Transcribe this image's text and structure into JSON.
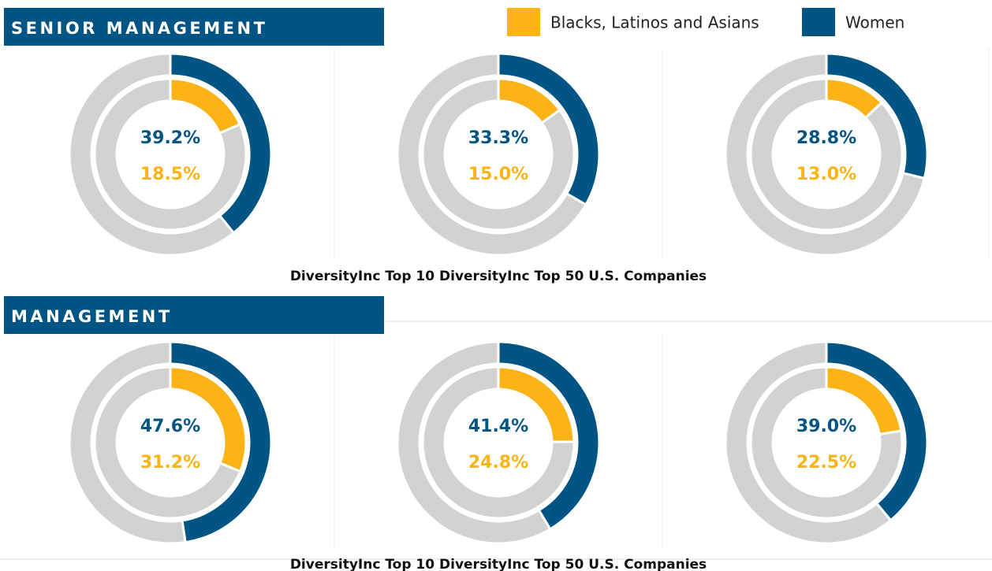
{
  "legend": [
    {
      "name": "Blacks, Latinos and Asians",
      "color": "#fbb316"
    },
    {
      "name": "Women",
      "color": "#005584"
    }
  ],
  "sections": [
    {
      "title": "SENIOR MANAGEMENT",
      "caption": "DiversityInc Top 10 DiversityInc Top 50 U.S. Companies",
      "chart_data": [
        {
          "type": "donut",
          "values": [
            18.5,
            39.2
          ],
          "value_labels": [
            "18.5%",
            "39.2%"
          ]
        },
        {
          "type": "donut",
          "values": [
            15.0,
            33.3
          ],
          "value_labels": [
            "15.0%",
            "33.3%"
          ]
        },
        {
          "type": "donut",
          "values": [
            13.0,
            28.8
          ],
          "value_labels": [
            "13.0%",
            "28.8%"
          ]
        }
      ]
    },
    {
      "title": "MANAGEMENT",
      "caption": "DiversityInc Top 10 DiversityInc Top 50 U.S. Companies",
      "chart_data": [
        {
          "type": "donut",
          "values": [
            31.2,
            47.6
          ],
          "value_labels": [
            "31.2%",
            "47.6%"
          ]
        },
        {
          "type": "donut",
          "values": [
            24.8,
            41.4
          ],
          "value_labels": [
            "24.8%",
            "41.4%"
          ]
        },
        {
          "type": "donut",
          "values": [
            22.5,
            39.0
          ],
          "value_labels": [
            "22.5%",
            "39.0%"
          ]
        }
      ]
    }
  ]
}
